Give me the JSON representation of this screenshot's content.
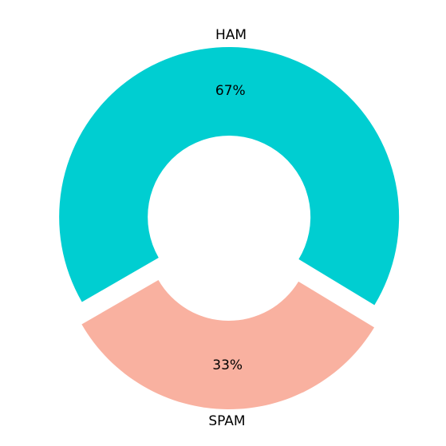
{
  "chart_data": {
    "type": "pie",
    "variant": "donut",
    "slices": [
      {
        "label": "HAM",
        "value": 67,
        "pct_label": "67%",
        "color": "#00CED1"
      },
      {
        "label": "SPAM",
        "value": 33,
        "pct_label": "33%",
        "color": "#F9B1A0"
      }
    ],
    "exploded": true,
    "legend": "none"
  }
}
